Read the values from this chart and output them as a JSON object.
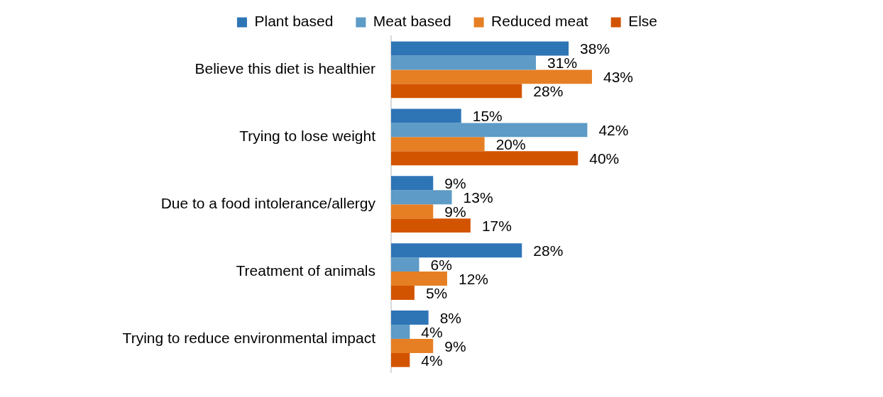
{
  "chart_data": {
    "type": "bar",
    "orientation": "horizontal",
    "categories": [
      "Believe this diet is healthier",
      "Trying to lose weight",
      "Due to a food intolerance/allergy",
      "Treatment of animals",
      "Trying to reduce environmental impact"
    ],
    "series": [
      {
        "name": "Plant based",
        "color": "#2e75b6",
        "values": [
          38,
          15,
          9,
          28,
          8
        ],
        "value_labels": [
          "38%",
          "15%",
          "9%",
          "28%",
          "8%"
        ]
      },
      {
        "name": "Meat based",
        "color": "#5e9bc6",
        "values": [
          31,
          42,
          13,
          6,
          4
        ],
        "value_labels": [
          "31%",
          "42%",
          "13%",
          "6%",
          "4%"
        ]
      },
      {
        "name": "Reduced meat",
        "color": "#e67f24",
        "values": [
          43,
          20,
          9,
          12,
          9
        ],
        "value_labels": [
          "43%",
          "20%",
          "9%",
          "12%",
          "9%"
        ]
      },
      {
        "name": "Else",
        "color": "#d35400",
        "values": [
          28,
          40,
          17,
          5,
          4
        ],
        "value_labels": [
          "28%",
          "40%",
          "17%",
          "5%",
          "4%"
        ]
      }
    ],
    "legend": "top",
    "tick_labels": "y",
    "grid": false
  }
}
